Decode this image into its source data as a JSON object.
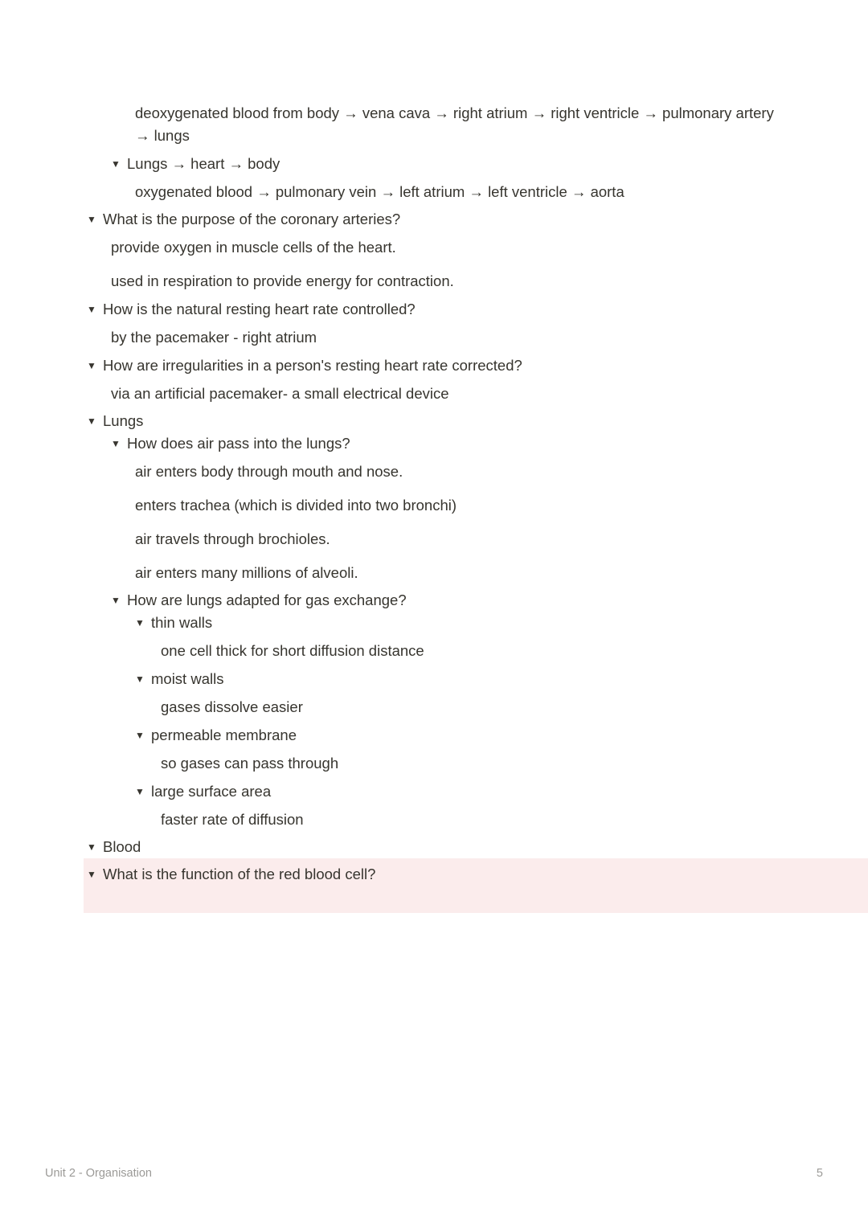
{
  "content": {
    "line1": "deoxygenated blood from body → vena cava → right atrium → right ventricle → pulmonary artery → lungs",
    "toggle_lungs_heart_body": "Lungs → heart → body",
    "line_oxygenated": "oxygenated blood → pulmonary vein → left atrium → left ventricle → aorta",
    "toggle_coronary": "What is the purpose of the coronary arteries?",
    "coronary_ans1": "provide oxygen in muscle cells of the heart.",
    "coronary_ans2": "used in respiration to provide energy for contraction.",
    "toggle_resting_rate": "How is the natural resting heart rate controlled?",
    "resting_rate_ans": "by the pacemaker - right atrium",
    "toggle_irregular": "How are irregularities in a person's resting heart rate corrected?",
    "irregular_ans": "via an artificial pacemaker- a small electrical device",
    "toggle_lungs": "Lungs",
    "toggle_air_pass": "How does air pass into the lungs?",
    "air1": "air enters body through mouth and nose.",
    "air2": "enters trachea (which is divided into two bronchi)",
    "air3": "air travels through brochioles.",
    "air4": "air enters many millions of alveoli.",
    "toggle_adapted": "How are lungs adapted for gas exchange?",
    "toggle_thin": "thin walls",
    "thin_ans": "one cell thick for short diffusion distance",
    "toggle_moist": "moist walls",
    "moist_ans": "gases dissolve easier",
    "toggle_permeable": "permeable membrane",
    "permeable_ans": "so gases can pass through",
    "toggle_surface": "large surface area",
    "surface_ans": "faster rate of diffusion",
    "toggle_blood": "Blood",
    "toggle_rbc": "What is the function of the red blood cell?"
  },
  "footer": {
    "title": "Unit 2 - Organisation",
    "page": "5"
  },
  "colors": {
    "text": "#37352f",
    "footer": "#9b9a97",
    "highlight_bg": "#fbecec",
    "background": "#ffffff"
  }
}
